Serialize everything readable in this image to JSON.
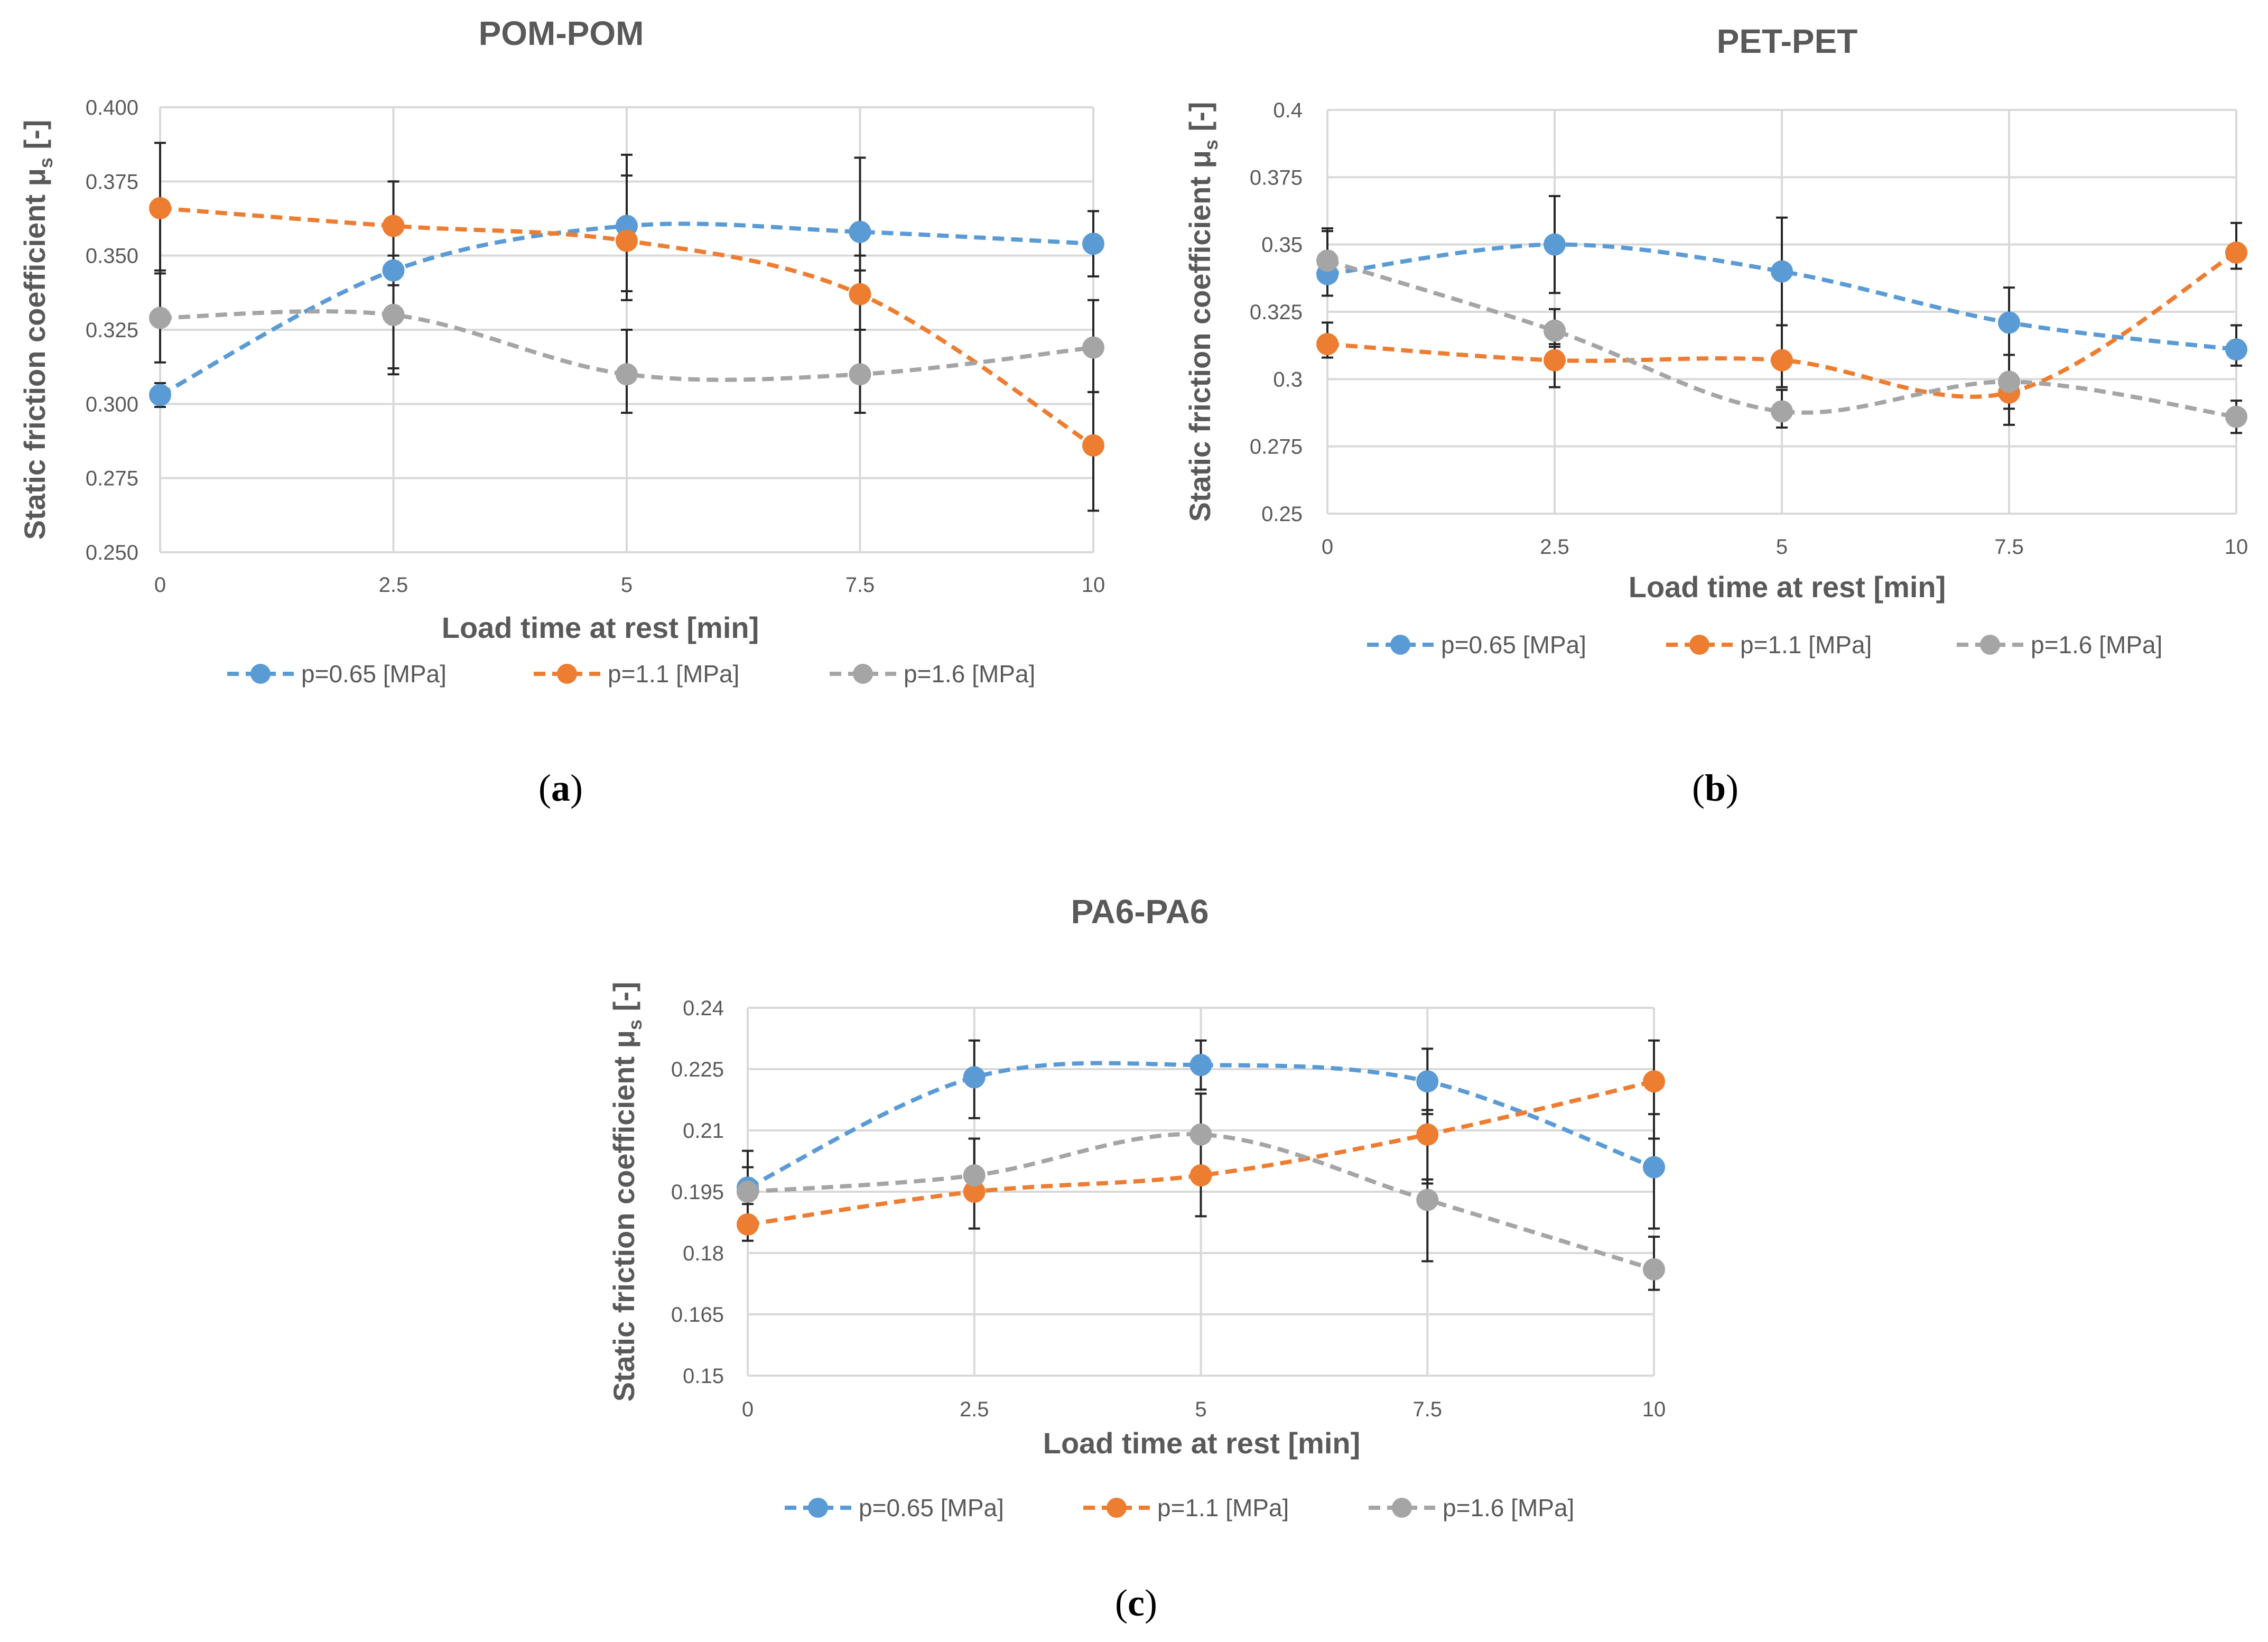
{
  "colors": {
    "series_0": "#5B9BD5",
    "series_1": "#ED7D31",
    "series_2": "#A5A5A5",
    "grid": "#d9d9d9",
    "axis_text": "#595959",
    "title_text": "#595959",
    "error_bar": "#262626"
  },
  "chart_data": [
    {
      "id": "pom",
      "type": "line",
      "title": "POM-POM",
      "caption_letter": "a",
      "xlabel": "Load time at rest [min]",
      "ylabel_main": "Static friction coefficient μ",
      "ylabel_sub": "s",
      "ylabel_tail": " [-]",
      "x": [
        0,
        2.5,
        5,
        7.5,
        10
      ],
      "x_tick_labels": [
        "0",
        "2.5",
        "5",
        "7.5",
        "10"
      ],
      "ylim": [
        0.25,
        0.4
      ],
      "y_ticks": [
        0.25,
        0.275,
        0.3,
        0.325,
        0.35,
        0.375,
        0.4
      ],
      "y_tick_labels": [
        "0.250",
        "0.275",
        "0.300",
        "0.325",
        "0.350",
        "0.375",
        "0.400"
      ],
      "grid": true,
      "legend_position": "bottom",
      "series": [
        {
          "name": "p=0.65 [MPa]",
          "values": [
            0.303,
            0.345,
            0.36,
            0.358,
            0.354
          ],
          "err_low": [
            0.004,
            0.035,
            0.022,
            0.013,
            0.011
          ],
          "err_high": [
            0.004,
            0.03,
            0.024,
            0.025,
            0.011
          ]
        },
        {
          "name": "p=1.1 [MPa]",
          "values": [
            0.366,
            0.36,
            0.355,
            0.337,
            0.286
          ],
          "err_low": [
            0.022,
            0.01,
            0.02,
            0.012,
            0.022
          ],
          "err_high": [
            0.022,
            0.015,
            0.022,
            0.013,
            0.018
          ]
        },
        {
          "name": "p=1.6 [MPa]",
          "values": [
            0.329,
            0.33,
            0.31,
            0.31,
            0.319
          ],
          "err_low": [
            0.015,
            0.018,
            0.013,
            0.013,
            0.015
          ],
          "err_high": [
            0.016,
            0.01,
            0.015,
            0.015,
            0.016
          ]
        }
      ]
    },
    {
      "id": "pet",
      "type": "line",
      "title": "PET-PET",
      "caption_letter": "b",
      "xlabel": "Load time at rest [min]",
      "ylabel_main": "Static friction coefficient μ",
      "ylabel_sub": "s",
      "ylabel_tail": " [-]",
      "x": [
        0,
        2.5,
        5,
        7.5,
        10
      ],
      "x_tick_labels": [
        "0",
        "2.5",
        "5",
        "7.5",
        "10"
      ],
      "ylim": [
        0.25,
        0.4
      ],
      "y_ticks": [
        0.25,
        0.275,
        0.3,
        0.325,
        0.35,
        0.375,
        0.4
      ],
      "y_tick_labels": [
        "0.25",
        "0.275",
        "0.3",
        "0.325",
        "0.35",
        "0.375",
        "0.4"
      ],
      "grid": true,
      "legend_position": "bottom",
      "series": [
        {
          "name": "p=0.65 [MPa]",
          "values": [
            0.339,
            0.35,
            0.34,
            0.321,
            0.311
          ],
          "err_low": [
            0.008,
            0.018,
            0.02,
            0.012,
            0.006
          ],
          "err_high": [
            0.016,
            0.018,
            0.02,
            0.013,
            0.009
          ]
        },
        {
          "name": "p=1.1 [MPa]",
          "values": [
            0.313,
            0.307,
            0.307,
            0.295,
            0.347
          ],
          "err_low": [
            0.005,
            0.01,
            0.01,
            0.012,
            0.006
          ],
          "err_high": [
            0.008,
            0.006,
            0.013,
            0.014,
            0.011
          ]
        },
        {
          "name": "p=1.6 [MPa]",
          "values": [
            0.344,
            0.318,
            0.288,
            0.299,
            0.286
          ],
          "err_low": [
            0.008,
            0.006,
            0.006,
            0.01,
            0.006
          ],
          "err_high": [
            0.012,
            0.008,
            0.008,
            0.01,
            0.006
          ]
        }
      ]
    },
    {
      "id": "pa6",
      "type": "line",
      "title": "PA6-PA6",
      "caption_letter": "c",
      "xlabel": "Load time at rest [min]",
      "ylabel_main": "Static friction coefficient μ",
      "ylabel_sub": "s",
      "ylabel_tail": " [-]",
      "x": [
        0,
        2.5,
        5,
        7.5,
        10
      ],
      "x_tick_labels": [
        "0",
        "2.5",
        "5",
        "7.5",
        "10"
      ],
      "ylim": [
        0.15,
        0.24
      ],
      "y_ticks": [
        0.15,
        0.165,
        0.18,
        0.195,
        0.21,
        0.225,
        0.24
      ],
      "y_tick_labels": [
        "0.15",
        "0.165",
        "0.18",
        "0.195",
        "0.21",
        "0.225",
        "0.24"
      ],
      "grid": true,
      "legend_position": "bottom",
      "series": [
        {
          "name": "p=0.65 [MPa]",
          "values": [
            0.196,
            0.223,
            0.226,
            0.222,
            0.201
          ],
          "err_low": [
            0.011,
            0.01,
            0.006,
            0.008,
            0.015
          ],
          "err_high": [
            0.009,
            0.009,
            0.006,
            0.008,
            0.013
          ]
        },
        {
          "name": "p=1.1 [MPa]",
          "values": [
            0.187,
            0.195,
            0.199,
            0.209,
            0.222
          ],
          "err_low": [
            0.004,
            0.009,
            0.01,
            0.012,
            0.014
          ],
          "err_high": [
            0.005,
            0.013,
            0.01,
            0.006,
            0.01
          ]
        },
        {
          "name": "p=1.6 [MPa]",
          "values": [
            0.195,
            0.199,
            0.209,
            0.193,
            0.176
          ],
          "err_low": [
            0.006,
            0.004,
            0.012,
            0.015,
            0.005
          ],
          "err_high": [
            0.006,
            0.009,
            0.01,
            0.005,
            0.008
          ]
        }
      ]
    }
  ]
}
